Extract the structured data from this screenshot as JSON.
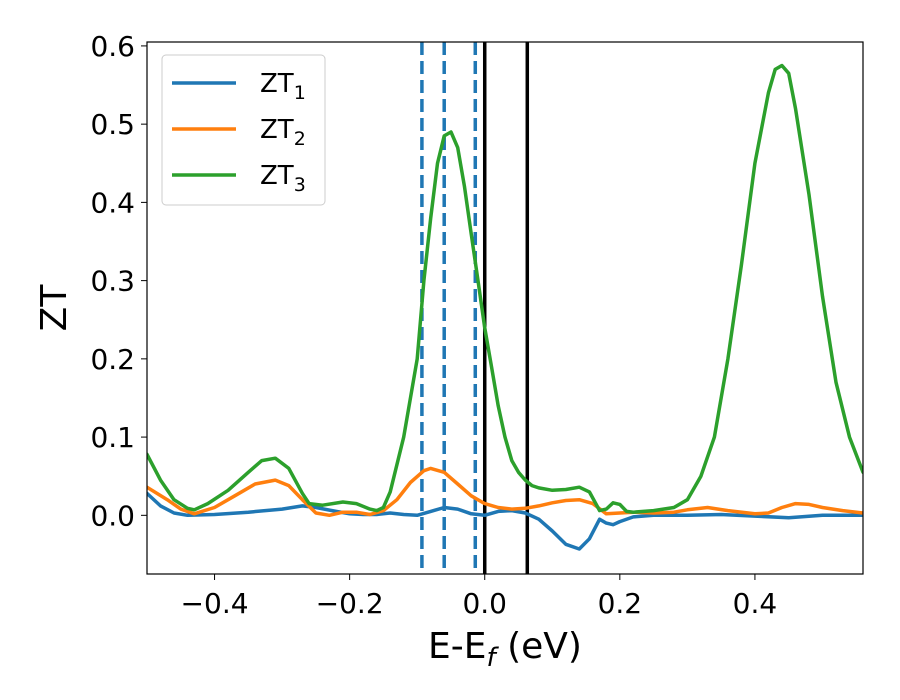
{
  "chart_data": {
    "type": "line",
    "xlabel": "E-E",
    "xlabel_sub": "f",
    "xlabel_unit": " (eV)",
    "ylabel": "ZT",
    "xlim": [
      -0.5,
      0.56
    ],
    "ylim": [
      -0.075,
      0.605
    ],
    "xticks": [
      -0.4,
      -0.2,
      0.0,
      0.2,
      0.4
    ],
    "xtick_labels": [
      "−0.4",
      "−0.2",
      "0.0",
      "0.2",
      "0.4"
    ],
    "yticks": [
      0.0,
      0.1,
      0.2,
      0.3,
      0.4,
      0.5,
      0.6
    ],
    "ytick_labels": [
      "0.0",
      "0.1",
      "0.2",
      "0.3",
      "0.4",
      "0.5",
      "0.6"
    ],
    "legend_position": "top-left",
    "grid": false,
    "series": [
      {
        "name": "ZT",
        "sub": "1",
        "color": "#1f77b4",
        "points": [
          [
            -0.5,
            0.028
          ],
          [
            -0.48,
            0.012
          ],
          [
            -0.46,
            0.003
          ],
          [
            -0.44,
            0.0
          ],
          [
            -0.4,
            0.001
          ],
          [
            -0.35,
            0.004
          ],
          [
            -0.3,
            0.008
          ],
          [
            -0.27,
            0.012
          ],
          [
            -0.25,
            0.01
          ],
          [
            -0.22,
            0.005
          ],
          [
            -0.2,
            0.002
          ],
          [
            -0.18,
            0.001
          ],
          [
            -0.16,
            0.001
          ],
          [
            -0.14,
            0.003
          ],
          [
            -0.12,
            0.001
          ],
          [
            -0.1,
            0.0
          ],
          [
            -0.08,
            0.005
          ],
          [
            -0.06,
            0.01
          ],
          [
            -0.04,
            0.008
          ],
          [
            -0.02,
            0.002
          ],
          [
            0.0,
            0.0
          ],
          [
            0.02,
            0.005
          ],
          [
            0.04,
            0.006
          ],
          [
            0.06,
            0.003
          ],
          [
            0.08,
            -0.005
          ],
          [
            0.1,
            -0.02
          ],
          [
            0.12,
            -0.037
          ],
          [
            0.14,
            -0.043
          ],
          [
            0.155,
            -0.03
          ],
          [
            0.17,
            -0.005
          ],
          [
            0.18,
            -0.01
          ],
          [
            0.19,
            -0.012
          ],
          [
            0.2,
            -0.008
          ],
          [
            0.22,
            -0.002
          ],
          [
            0.25,
            0.0
          ],
          [
            0.3,
            0.0
          ],
          [
            0.35,
            0.001
          ],
          [
            0.4,
            -0.001
          ],
          [
            0.45,
            -0.003
          ],
          [
            0.5,
            0.0
          ],
          [
            0.56,
            0.0
          ]
        ]
      },
      {
        "name": "ZT",
        "sub": "2",
        "color": "#ff7f0e",
        "points": [
          [
            -0.5,
            0.036
          ],
          [
            -0.47,
            0.02
          ],
          [
            -0.45,
            0.008
          ],
          [
            -0.43,
            0.002
          ],
          [
            -0.4,
            0.01
          ],
          [
            -0.37,
            0.025
          ],
          [
            -0.34,
            0.04
          ],
          [
            -0.31,
            0.045
          ],
          [
            -0.29,
            0.038
          ],
          [
            -0.27,
            0.02
          ],
          [
            -0.25,
            0.003
          ],
          [
            -0.23,
            0.0
          ],
          [
            -0.21,
            0.004
          ],
          [
            -0.19,
            0.004
          ],
          [
            -0.17,
            0.001
          ],
          [
            -0.15,
            0.006
          ],
          [
            -0.13,
            0.02
          ],
          [
            -0.11,
            0.042
          ],
          [
            -0.09,
            0.057
          ],
          [
            -0.08,
            0.06
          ],
          [
            -0.06,
            0.055
          ],
          [
            -0.04,
            0.04
          ],
          [
            -0.02,
            0.025
          ],
          [
            0.0,
            0.015
          ],
          [
            0.02,
            0.01
          ],
          [
            0.04,
            0.008
          ],
          [
            0.06,
            0.009
          ],
          [
            0.08,
            0.012
          ],
          [
            0.1,
            0.016
          ],
          [
            0.12,
            0.019
          ],
          [
            0.14,
            0.02
          ],
          [
            0.16,
            0.015
          ],
          [
            0.18,
            0.002
          ],
          [
            0.2,
            0.003
          ],
          [
            0.22,
            0.004
          ],
          [
            0.25,
            0.003
          ],
          [
            0.28,
            0.004
          ],
          [
            0.3,
            0.007
          ],
          [
            0.33,
            0.01
          ],
          [
            0.36,
            0.006
          ],
          [
            0.4,
            0.002
          ],
          [
            0.42,
            0.003
          ],
          [
            0.44,
            0.01
          ],
          [
            0.46,
            0.015
          ],
          [
            0.48,
            0.014
          ],
          [
            0.5,
            0.01
          ],
          [
            0.53,
            0.006
          ],
          [
            0.56,
            0.003
          ]
        ]
      },
      {
        "name": "ZT",
        "sub": "3",
        "color": "#2ca02c",
        "points": [
          [
            -0.5,
            0.078
          ],
          [
            -0.48,
            0.045
          ],
          [
            -0.46,
            0.02
          ],
          [
            -0.44,
            0.009
          ],
          [
            -0.43,
            0.007
          ],
          [
            -0.41,
            0.015
          ],
          [
            -0.38,
            0.032
          ],
          [
            -0.35,
            0.055
          ],
          [
            -0.33,
            0.07
          ],
          [
            -0.31,
            0.073
          ],
          [
            -0.29,
            0.06
          ],
          [
            -0.27,
            0.028
          ],
          [
            -0.26,
            0.015
          ],
          [
            -0.24,
            0.013
          ],
          [
            -0.21,
            0.017
          ],
          [
            -0.19,
            0.015
          ],
          [
            -0.17,
            0.008
          ],
          [
            -0.16,
            0.006
          ],
          [
            -0.15,
            0.01
          ],
          [
            -0.14,
            0.03
          ],
          [
            -0.12,
            0.1
          ],
          [
            -0.1,
            0.2
          ],
          [
            -0.09,
            0.3
          ],
          [
            -0.08,
            0.38
          ],
          [
            -0.07,
            0.45
          ],
          [
            -0.06,
            0.485
          ],
          [
            -0.05,
            0.49
          ],
          [
            -0.04,
            0.47
          ],
          [
            -0.03,
            0.42
          ],
          [
            -0.02,
            0.36
          ],
          [
            -0.01,
            0.3
          ],
          [
            0.0,
            0.24
          ],
          [
            0.01,
            0.19
          ],
          [
            0.02,
            0.14
          ],
          [
            0.03,
            0.1
          ],
          [
            0.04,
            0.07
          ],
          [
            0.05,
            0.055
          ],
          [
            0.06,
            0.045
          ],
          [
            0.07,
            0.038
          ],
          [
            0.08,
            0.035
          ],
          [
            0.1,
            0.032
          ],
          [
            0.12,
            0.033
          ],
          [
            0.14,
            0.036
          ],
          [
            0.155,
            0.03
          ],
          [
            0.17,
            0.006
          ],
          [
            0.18,
            0.008
          ],
          [
            0.19,
            0.016
          ],
          [
            0.2,
            0.014
          ],
          [
            0.21,
            0.005
          ],
          [
            0.22,
            0.004
          ],
          [
            0.25,
            0.006
          ],
          [
            0.28,
            0.01
          ],
          [
            0.3,
            0.02
          ],
          [
            0.32,
            0.05
          ],
          [
            0.34,
            0.1
          ],
          [
            0.36,
            0.2
          ],
          [
            0.38,
            0.32
          ],
          [
            0.4,
            0.45
          ],
          [
            0.42,
            0.54
          ],
          [
            0.43,
            0.57
          ],
          [
            0.44,
            0.575
          ],
          [
            0.45,
            0.565
          ],
          [
            0.46,
            0.52
          ],
          [
            0.48,
            0.41
          ],
          [
            0.5,
            0.28
          ],
          [
            0.52,
            0.17
          ],
          [
            0.54,
            0.1
          ],
          [
            0.56,
            0.055
          ]
        ]
      }
    ],
    "vlines": [
      {
        "x": -0.093,
        "style": "dashed",
        "color": "#1f77b4"
      },
      {
        "x": -0.06,
        "style": "dashed",
        "color": "#1f77b4"
      },
      {
        "x": -0.014,
        "style": "dashed",
        "color": "#1f77b4"
      },
      {
        "x": 0.0,
        "style": "solid",
        "color": "#000000"
      },
      {
        "x": 0.063,
        "style": "solid",
        "color": "#000000"
      }
    ]
  }
}
